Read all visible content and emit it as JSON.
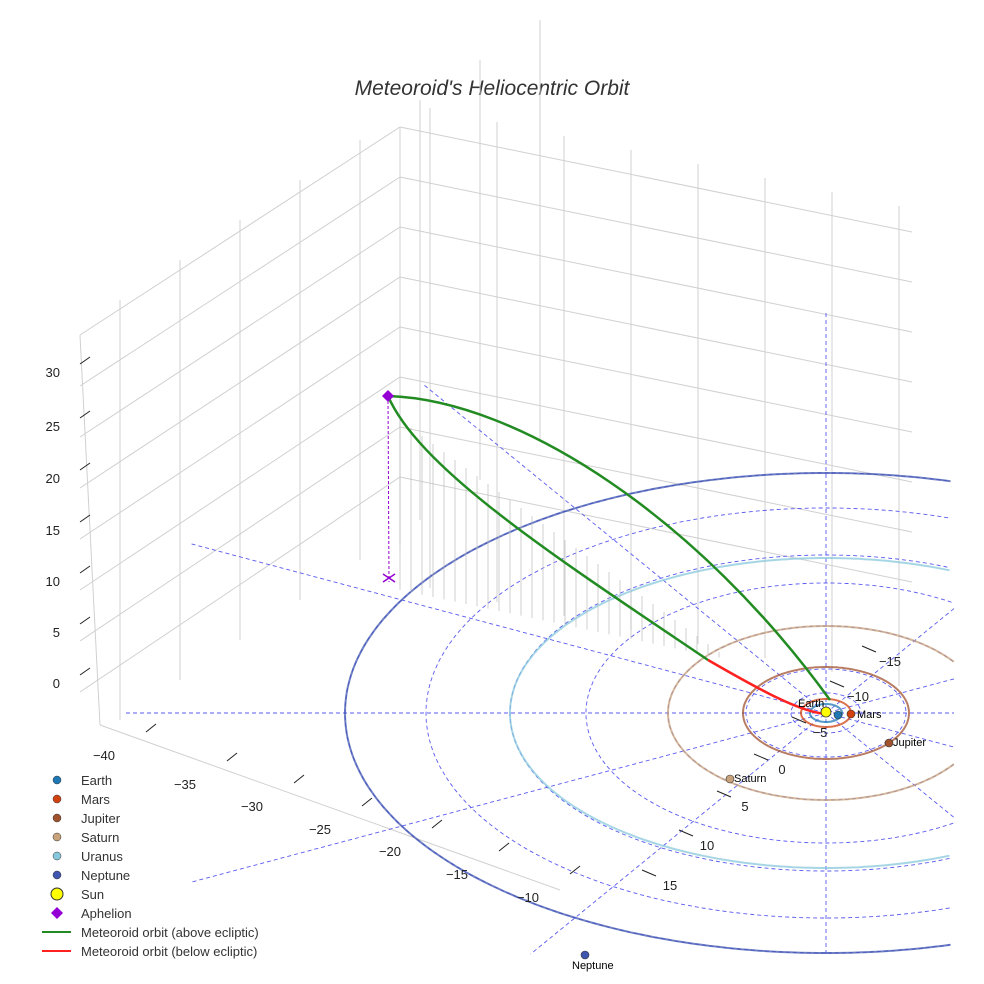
{
  "chart_data": {
    "type": "scatter",
    "title": "Meteoroid's Heliocentric Orbit",
    "z_ticks": [
      "30",
      "25",
      "20",
      "15",
      "10",
      "5",
      "0"
    ],
    "x_ticks": [
      "−40",
      "−35",
      "−30",
      "−25",
      "−20",
      "−15",
      "−10"
    ],
    "y_ticks": [
      "15",
      "10",
      "5",
      "0",
      "−5",
      "−10",
      "−15"
    ],
    "planets": [
      {
        "name": "Earth",
        "orbit_au": 1.0,
        "color": "#1f77b4"
      },
      {
        "name": "Mars",
        "orbit_au": 1.52,
        "color": "#d2420f"
      },
      {
        "name": "Jupiter",
        "orbit_au": 5.2,
        "color": "#a0522d"
      },
      {
        "name": "Saturn",
        "orbit_au": 9.58,
        "color": "#c8a27a"
      },
      {
        "name": "Uranus",
        "orbit_au": 19.2,
        "color": "#88c8dc"
      },
      {
        "name": "Neptune",
        "orbit_au": 30.05,
        "color": "#4055b0"
      }
    ],
    "sun": {
      "name": "Sun",
      "color": "#ffff00"
    },
    "aphelion": {
      "name": "Aphelion",
      "color": "#9400d3",
      "z": 27
    },
    "series": [
      {
        "name": "Meteoroid orbit (above ecliptic)",
        "color": "#228b22"
      },
      {
        "name": "Meteoroid orbit (below ecliptic)",
        "color": "#ff2020"
      }
    ],
    "legend": [
      "Earth",
      "Mars",
      "Jupiter",
      "Saturn",
      "Uranus",
      "Neptune",
      "Sun",
      "Aphelion",
      "Meteoroid orbit (above ecliptic)",
      "Meteoroid orbit (below ecliptic)"
    ],
    "legend_position": "bottom-left",
    "grid": true
  }
}
